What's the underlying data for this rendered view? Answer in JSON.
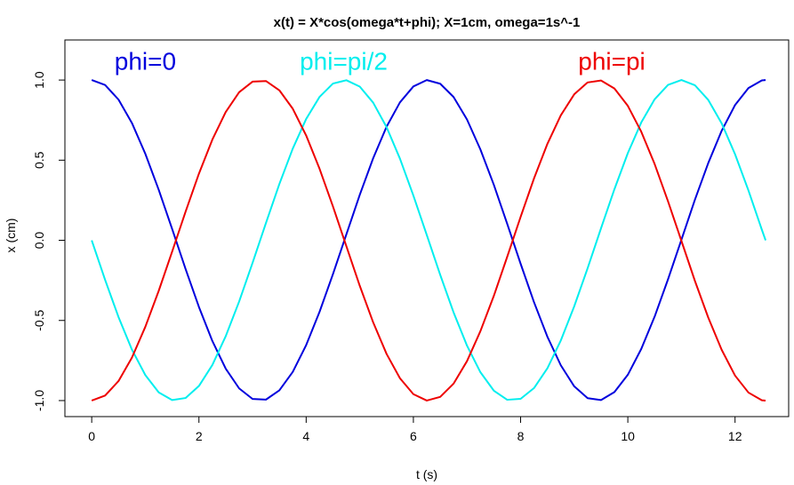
{
  "chart_data": {
    "type": "line",
    "title": "x(t) = X*cos(omega*t+phi);  X=1cm, omega=1s^-1",
    "xlabel": "t  (s)",
    "ylabel": "x  (cm)",
    "xlim": [
      -0.5,
      13.0
    ],
    "ylim": [
      -1.1,
      1.25
    ],
    "xticks": [
      0,
      2,
      4,
      6,
      8,
      10,
      12
    ],
    "xtick_labels": [
      "0",
      "2",
      "4",
      "6",
      "8",
      "10",
      "12"
    ],
    "yticks": [
      -1.0,
      -0.5,
      0.0,
      0.5,
      1.0
    ],
    "ytick_labels": [
      "-1.0",
      "-0.5",
      "0.0",
      "0.5",
      "1.0"
    ],
    "grid": false,
    "x": [
      0.0,
      0.25,
      0.5,
      0.75,
      1.0,
      1.25,
      1.5,
      1.75,
      2.0,
      2.25,
      2.5,
      2.75,
      3.0,
      3.25,
      3.5,
      3.75,
      4.0,
      4.25,
      4.5,
      4.75,
      5.0,
      5.25,
      5.5,
      5.75,
      6.0,
      6.25,
      6.5,
      6.75,
      7.0,
      7.25,
      7.5,
      7.75,
      8.0,
      8.25,
      8.5,
      8.75,
      9.0,
      9.25,
      9.5,
      9.75,
      10.0,
      10.25,
      10.5,
      10.75,
      11.0,
      11.25,
      11.5,
      11.75,
      12.0,
      12.25,
      12.5,
      12.57
    ],
    "series": [
      {
        "name": "phi=0",
        "color": "#0000dd",
        "values": [
          1.0,
          0.969,
          0.878,
          0.732,
          0.54,
          0.315,
          0.071,
          -0.178,
          -0.416,
          -0.628,
          -0.801,
          -0.924,
          -0.99,
          -0.994,
          -0.936,
          -0.821,
          -0.654,
          -0.446,
          -0.211,
          0.037,
          0.284,
          0.512,
          0.709,
          0.861,
          0.96,
          1.0,
          0.977,
          0.894,
          0.754,
          0.567,
          0.347,
          0.103,
          -0.146,
          -0.386,
          -0.602,
          -0.78,
          -0.911,
          -0.985,
          -0.997,
          -0.947,
          -0.839,
          -0.678,
          -0.476,
          -0.243,
          0.004,
          0.252,
          0.482,
          0.683,
          0.844,
          0.95,
          0.998,
          1.0
        ]
      },
      {
        "name": "phi=pi/2",
        "color": "#00eeee",
        "values": [
          0.0,
          -0.247,
          -0.479,
          -0.682,
          -0.841,
          -0.949,
          -0.997,
          -0.984,
          -0.909,
          -0.778,
          -0.598,
          -0.382,
          -0.141,
          0.108,
          0.351,
          0.572,
          0.757,
          0.895,
          0.978,
          0.999,
          0.959,
          0.859,
          0.706,
          0.509,
          0.279,
          0.033,
          -0.215,
          -0.45,
          -0.657,
          -0.823,
          -0.938,
          -0.995,
          -0.989,
          -0.922,
          -0.798,
          -0.625,
          -0.412,
          -0.174,
          0.075,
          0.319,
          0.544,
          0.735,
          0.88,
          0.97,
          1.0,
          0.968,
          0.876,
          0.73,
          0.537,
          0.311,
          0.066,
          0.0
        ]
      },
      {
        "name": "phi=pi",
        "color": "#ee0000",
        "values": [
          -1.0,
          -0.969,
          -0.878,
          -0.732,
          -0.54,
          -0.315,
          -0.071,
          0.178,
          0.416,
          0.628,
          0.801,
          0.924,
          0.99,
          0.994,
          0.936,
          0.821,
          0.654,
          0.446,
          0.211,
          -0.037,
          -0.284,
          -0.512,
          -0.709,
          -0.861,
          -0.96,
          -1.0,
          -0.977,
          -0.894,
          -0.754,
          -0.567,
          -0.347,
          -0.103,
          0.146,
          0.386,
          0.602,
          0.78,
          0.911,
          0.985,
          0.997,
          0.947,
          0.839,
          0.678,
          0.476,
          0.243,
          -0.004,
          -0.252,
          -0.482,
          -0.683,
          -0.844,
          -0.95,
          -0.998,
          -1.0
        ]
      }
    ],
    "annotations": [
      {
        "text": "phi=0",
        "x": 1.0,
        "y": 1.12,
        "color": "#0000dd"
      },
      {
        "text": "phi=pi/2",
        "x": 4.7,
        "y": 1.12,
        "color": "#00eeee"
      },
      {
        "text": "phi=pi",
        "x": 9.7,
        "y": 1.12,
        "color": "#ee0000"
      }
    ]
  }
}
